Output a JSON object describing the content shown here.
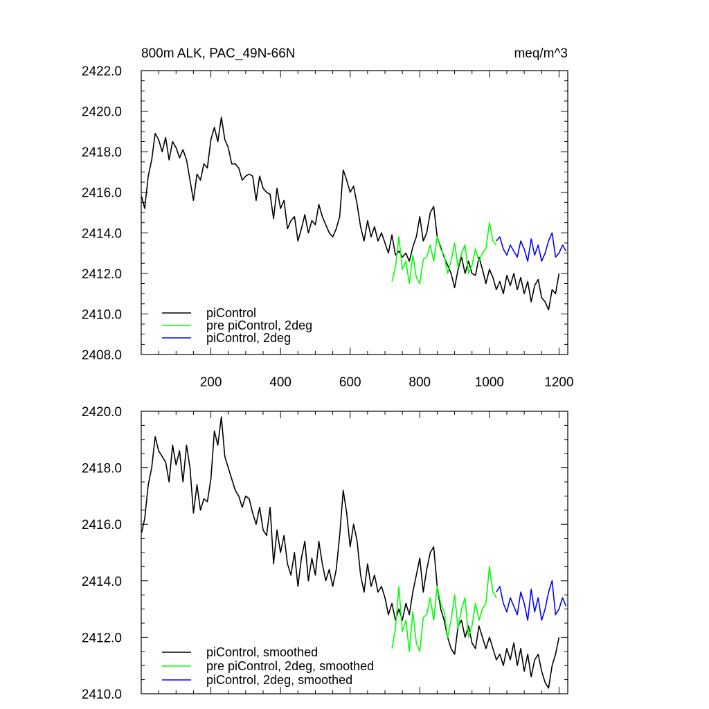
{
  "chart_data": [
    {
      "type": "line",
      "title": "800m ALK, PAC_49N-66N",
      "units": "meq/m^3",
      "xlim": [
        0,
        1225
      ],
      "ylim": [
        2408,
        2422
      ],
      "xticks": [
        200,
        400,
        600,
        800,
        1000,
        1200
      ],
      "xtick_labels": [
        "200",
        "400",
        "600",
        "800",
        "1000",
        "1200"
      ],
      "yticks": [
        2408,
        2410,
        2412,
        2414,
        2416,
        2418,
        2420,
        2422
      ],
      "ytick_labels": [
        "2408.0",
        "2410.0",
        "2412.0",
        "2414.0",
        "2416.0",
        "2418.0",
        "2420.0",
        "2422.0"
      ],
      "legend_position": "bottom-left",
      "series": [
        {
          "name": "piControl",
          "color": "#000000",
          "x": [
            1,
            10,
            20,
            30,
            40,
            50,
            60,
            70,
            80,
            90,
            100,
            110,
            120,
            130,
            140,
            150,
            160,
            170,
            180,
            190,
            200,
            210,
            220,
            230,
            240,
            250,
            260,
            270,
            280,
            290,
            300,
            310,
            320,
            330,
            340,
            350,
            360,
            370,
            380,
            390,
            400,
            410,
            420,
            430,
            440,
            450,
            460,
            470,
            480,
            490,
            500,
            510,
            520,
            530,
            540,
            550,
            560,
            570,
            580,
            590,
            600,
            610,
            620,
            630,
            640,
            650,
            660,
            670,
            680,
            690,
            700,
            710,
            720,
            730,
            740,
            750,
            760,
            770,
            780,
            790,
            800,
            810,
            820,
            830,
            840,
            850,
            860,
            870,
            880,
            890,
            900,
            910,
            920,
            930,
            940,
            950,
            960,
            970,
            980,
            990,
            1000,
            1010,
            1020,
            1030,
            1040,
            1050,
            1060,
            1070,
            1080,
            1090,
            1100,
            1110,
            1120,
            1130,
            1140,
            1150,
            1160,
            1170,
            1180,
            1190,
            1200
          ],
          "y": [
            2415.8,
            2415.2,
            2416.8,
            2417.6,
            2418.9,
            2418.6,
            2418.0,
            2418.7,
            2417.6,
            2418.5,
            2418.2,
            2417.7,
            2418.1,
            2417.6,
            2416.6,
            2415.6,
            2416.9,
            2416.6,
            2417.4,
            2417.2,
            2418.6,
            2419.2,
            2418.5,
            2419.7,
            2418.6,
            2418.2,
            2417.4,
            2417.4,
            2417.2,
            2416.6,
            2416.8,
            2416.9,
            2416.8,
            2415.6,
            2416.8,
            2416.2,
            2416.0,
            2415.9,
            2414.7,
            2416.2,
            2415.2,
            2415.6,
            2414.2,
            2414.6,
            2414.8,
            2413.6,
            2414.2,
            2414.9,
            2414.0,
            2414.6,
            2414.4,
            2415.4,
            2414.8,
            2414.4,
            2414.0,
            2413.8,
            2414.2,
            2414.8,
            2417.1,
            2416.6,
            2416.0,
            2416.3,
            2415.4,
            2414.3,
            2413.6,
            2414.6,
            2413.8,
            2414.3,
            2413.6,
            2414.0,
            2413.5,
            2413.0,
            2413.9,
            2412.9,
            2413.1,
            2412.8,
            2413.0,
            2412.6,
            2413.3,
            2413.8,
            2414.8,
            2413.6,
            2414.0,
            2415.0,
            2415.3,
            2413.8,
            2413.3,
            2412.8,
            2412.4,
            2412.0,
            2411.3,
            2412.2,
            2412.8,
            2412.0,
            2412.6,
            2412.0,
            2411.9,
            2412.8,
            2412.2,
            2411.5,
            2412.2,
            2411.8,
            2411.2,
            2411.6,
            2411.0,
            2411.9,
            2411.4,
            2412.0,
            2411.2,
            2411.8,
            2411.0,
            2411.6,
            2410.6,
            2411.4,
            2411.7,
            2410.8,
            2410.6,
            2410.2,
            2411.2,
            2411.0,
            2412.0
          ]
        },
        {
          "name": "pre piControl, 2deg",
          "color": "#00ff00",
          "x": [
            720,
            730,
            740,
            750,
            760,
            770,
            780,
            790,
            800,
            810,
            820,
            830,
            840,
            850,
            860,
            870,
            880,
            890,
            900,
            910,
            920,
            930,
            940,
            950,
            960,
            970,
            980,
            990,
            1000,
            1010,
            1020
          ],
          "y": [
            2411.6,
            2412.3,
            2413.8,
            2412.2,
            2412.6,
            2411.5,
            2412.9,
            2411.8,
            2411.5,
            2412.7,
            2412.8,
            2413.4,
            2412.6,
            2413.8,
            2413.2,
            2412.9,
            2412.0,
            2412.6,
            2413.5,
            2412.3,
            2413.0,
            2413.4,
            2412.0,
            2412.4,
            2413.2,
            2412.6,
            2413.0,
            2413.2,
            2414.5,
            2413.6,
            2413.4
          ]
        },
        {
          "name": "piControl, 2deg",
          "color": "#0000ff",
          "x": [
            1020,
            1030,
            1040,
            1050,
            1060,
            1070,
            1080,
            1090,
            1100,
            1110,
            1120,
            1130,
            1140,
            1150,
            1160,
            1170,
            1180,
            1190,
            1200,
            1210,
            1220
          ],
          "y": [
            2413.6,
            2413.8,
            2413.2,
            2412.9,
            2413.4,
            2413.1,
            2412.8,
            2413.6,
            2413.2,
            2412.6,
            2413.7,
            2412.9,
            2413.4,
            2412.6,
            2413.0,
            2413.6,
            2414.0,
            2412.8,
            2413.0,
            2413.4,
            2413.1
          ]
        }
      ]
    },
    {
      "type": "line",
      "xlim": [
        0,
        1225
      ],
      "ylim": [
        2410,
        2420
      ],
      "xticks": [
        200,
        400,
        600,
        800,
        1000,
        1200
      ],
      "yticks": [
        2410,
        2412,
        2414,
        2416,
        2418,
        2420
      ],
      "ytick_labels": [
        "2410.0",
        "2412.0",
        "2414.0",
        "2416.0",
        "2418.0",
        "2420.0"
      ],
      "legend_position": "bottom-left",
      "series": [
        {
          "name": "piControl, smoothed",
          "color": "#000000",
          "x": [
            1,
            10,
            20,
            30,
            40,
            50,
            60,
            70,
            80,
            90,
            100,
            110,
            120,
            130,
            140,
            150,
            160,
            170,
            180,
            190,
            200,
            210,
            220,
            230,
            240,
            250,
            260,
            270,
            280,
            290,
            300,
            310,
            320,
            330,
            340,
            350,
            360,
            370,
            380,
            390,
            400,
            410,
            420,
            430,
            440,
            450,
            460,
            470,
            480,
            490,
            500,
            510,
            520,
            530,
            540,
            550,
            560,
            570,
            580,
            590,
            600,
            610,
            620,
            630,
            640,
            650,
            660,
            670,
            680,
            690,
            700,
            710,
            720,
            730,
            740,
            750,
            760,
            770,
            780,
            790,
            800,
            810,
            820,
            830,
            840,
            850,
            860,
            870,
            880,
            890,
            900,
            910,
            920,
            930,
            940,
            950,
            960,
            970,
            980,
            990,
            1000,
            1010,
            1020,
            1030,
            1040,
            1050,
            1060,
            1070,
            1080,
            1090,
            1100,
            1110,
            1120,
            1130,
            1140,
            1150,
            1160,
            1170,
            1180,
            1190,
            1200
          ],
          "y": [
            2415.7,
            2416.2,
            2417.4,
            2418.0,
            2419.1,
            2418.6,
            2418.4,
            2418.2,
            2417.5,
            2418.8,
            2418.1,
            2418.6,
            2417.5,
            2418.8,
            2418.0,
            2416.4,
            2417.4,
            2416.5,
            2416.9,
            2416.8,
            2417.6,
            2419.3,
            2418.8,
            2419.8,
            2418.4,
            2418.0,
            2417.6,
            2417.2,
            2417.0,
            2416.6,
            2417.0,
            2416.9,
            2416.4,
            2416.0,
            2416.6,
            2415.8,
            2415.6,
            2416.6,
            2414.6,
            2415.8,
            2415.0,
            2415.6,
            2414.6,
            2414.2,
            2415.0,
            2413.8,
            2414.8,
            2415.4,
            2414.0,
            2414.8,
            2414.2,
            2415.4,
            2414.6,
            2414.0,
            2414.4,
            2413.8,
            2414.4,
            2415.6,
            2417.2,
            2416.4,
            2415.2,
            2416.0,
            2415.4,
            2414.2,
            2413.6,
            2414.6,
            2413.8,
            2414.2,
            2413.6,
            2413.8,
            2413.4,
            2412.8,
            2413.2,
            2412.6,
            2413.0,
            2412.6,
            2413.2,
            2412.8,
            2413.6,
            2414.2,
            2414.8,
            2413.6,
            2414.4,
            2415.0,
            2415.2,
            2413.8,
            2413.0,
            2412.6,
            2412.0,
            2411.6,
            2411.4,
            2412.4,
            2412.6,
            2412.0,
            2412.4,
            2411.8,
            2411.6,
            2412.4,
            2412.0,
            2411.6,
            2412.0,
            2411.6,
            2411.2,
            2411.4,
            2411.0,
            2411.6,
            2411.2,
            2411.8,
            2411.0,
            2411.6,
            2410.8,
            2411.4,
            2410.6,
            2411.2,
            2411.4,
            2410.8,
            2410.4,
            2410.2,
            2411.0,
            2411.4,
            2412.0
          ]
        },
        {
          "name": "pre piControl, 2deg, smoothed",
          "color": "#00ff00",
          "x": [
            720,
            730,
            740,
            750,
            760,
            770,
            780,
            790,
            800,
            810,
            820,
            830,
            840,
            850,
            860,
            870,
            880,
            890,
            900,
            910,
            920,
            930,
            940,
            950,
            960,
            970,
            980,
            990,
            1000,
            1010,
            1020
          ],
          "y": [
            2411.6,
            2412.3,
            2413.8,
            2412.2,
            2412.6,
            2411.5,
            2412.9,
            2411.8,
            2411.5,
            2412.7,
            2412.8,
            2413.4,
            2412.6,
            2413.8,
            2413.2,
            2412.9,
            2412.0,
            2412.6,
            2413.5,
            2412.3,
            2413.0,
            2413.4,
            2412.0,
            2412.4,
            2413.2,
            2412.6,
            2413.0,
            2413.2,
            2414.5,
            2413.6,
            2413.4
          ]
        },
        {
          "name": "piControl, 2deg, smoothed",
          "color": "#0000ff",
          "x": [
            1020,
            1030,
            1040,
            1050,
            1060,
            1070,
            1080,
            1090,
            1100,
            1110,
            1120,
            1130,
            1140,
            1150,
            1160,
            1170,
            1180,
            1190,
            1200,
            1210,
            1220
          ],
          "y": [
            2413.6,
            2413.8,
            2413.2,
            2412.9,
            2413.4,
            2413.1,
            2412.8,
            2413.6,
            2413.2,
            2412.6,
            2413.7,
            2412.9,
            2413.4,
            2412.6,
            2413.0,
            2413.6,
            2414.0,
            2412.8,
            2413.0,
            2413.4,
            2413.1
          ]
        }
      ]
    }
  ]
}
